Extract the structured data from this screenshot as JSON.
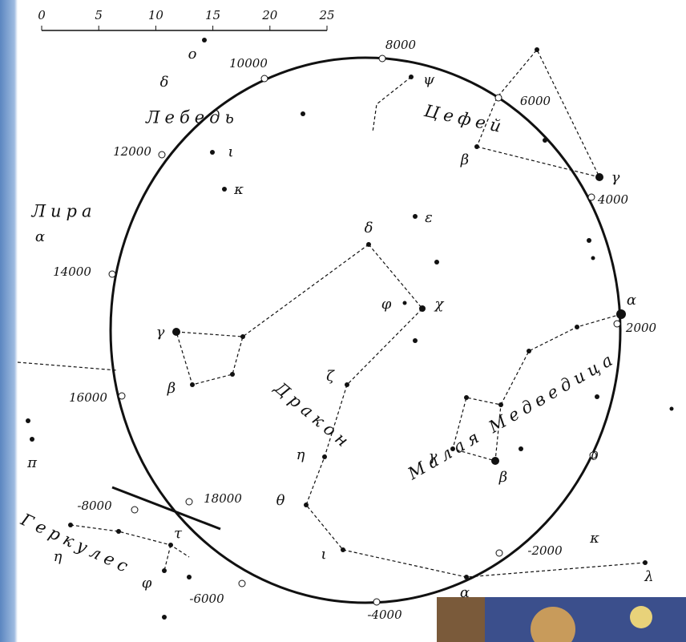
{
  "scale": {
    "ticks": [
      "0",
      "5",
      "10",
      "15",
      "20",
      "25"
    ]
  },
  "epochs": [
    "8000",
    "6000",
    "10000",
    "12000",
    "4000",
    "14000",
    "2000",
    "16000",
    "0",
    "18000",
    "-8000",
    "-2000",
    "-6000",
    "-4000"
  ],
  "constellations": [
    "Лебедь",
    "Цефей",
    "Лира",
    "Дракон",
    "Малая Медведица",
    "Геркулес"
  ],
  "star_labels": [
    "δ",
    "χ",
    "φ",
    "γ",
    "β",
    "ζ",
    "η",
    "θ",
    "ι",
    "α",
    "κ",
    "λ",
    "γ",
    "β",
    "α",
    "ε",
    "ι",
    "κ",
    "δ",
    "α",
    "π",
    "η",
    "τ",
    "φ",
    "γ",
    "β",
    "ψ",
    "o"
  ]
}
